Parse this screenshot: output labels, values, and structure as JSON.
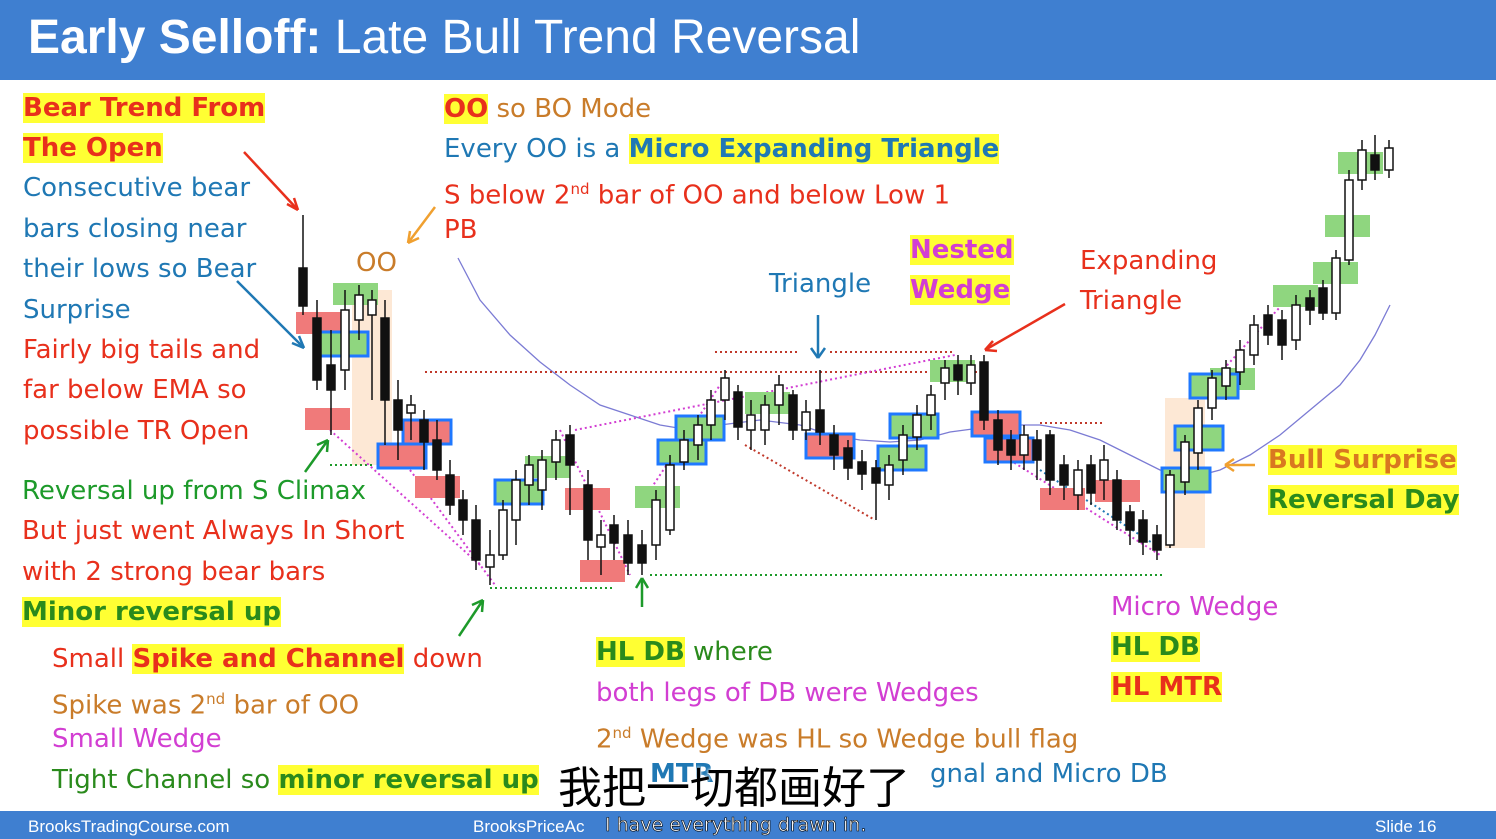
{
  "title": {
    "bold": "Early Selloff:",
    "rest": "Late Bull Trend Reversal"
  },
  "footer": {
    "left": "BrooksTradingCourse.com",
    "center": "BrooksPriceAc",
    "right": "Slide  16"
  },
  "annotations": {
    "bear_trend_1": "Bear Trend From",
    "bear_trend_2": "The Open",
    "consec_1": "Consecutive bear",
    "consec_2": "bars closing near",
    "consec_3": "their lows so Bear",
    "consec_4": "Surprise",
    "tails_1": "Fairly big tails and",
    "tails_2": "far below EMA so",
    "tails_3": "possible TR Open",
    "reversal_1": "Reversal up from S Climax",
    "reversal_2": "But just went Always In Short",
    "reversal_3": "with 2 strong bear bars",
    "minor_rev": "Minor reversal up",
    "small": "Small",
    "spike_channel": "Spike and Channel",
    "down": "down",
    "spike_2nd_a": "Spike was 2",
    "spike_2nd_sup": "nd",
    "spike_2nd_b": " bar of OO",
    "small_wedge": "Small Wedge",
    "tight_a": "Tight Channel so",
    "tight_b": "minor reversal up",
    "oo_label": "OO",
    "oo_hl": "OO",
    "oo_rest": "so BO Mode",
    "every_oo": "Every OO is a",
    "micro_exp": "Micro Expanding Triangle",
    "s_below_a": "S below 2",
    "s_below_sup": "nd",
    "s_below_b": " bar of OO and below Low 1",
    "pb": "PB",
    "triangle": "Triangle",
    "nested_1": "Nested",
    "nested_2": "Wedge",
    "expanding_1": "Expanding",
    "expanding_2": "Triangle",
    "bull_surprise_1": "Bull Surprise",
    "bull_surprise_2": "Reversal Day",
    "micro_wedge": "Micro Wedge",
    "hl_db_right": "HL DB",
    "hl_mtr": "HL MTR",
    "hl_db": "HL DB",
    "where": "where",
    "both_legs": "both legs of DB were Wedges",
    "wedge2_a": "2",
    "wedge2_sup": "nd",
    "wedge2_b": " Wedge was HL so Wedge bull flag",
    "mtr_frag": "MTR",
    "signal_micro": "gnal and Micro DB"
  },
  "subtitles": {
    "chinese": "我把一切都画好了",
    "english": "I have everything drawn in."
  },
  "colors": {
    "header": "#3f7fd0",
    "highlight": "#ffff33",
    "bull_box": "#8fd67f",
    "bear_box": "#f07a7a",
    "blue_box": "#1f78ff"
  }
}
